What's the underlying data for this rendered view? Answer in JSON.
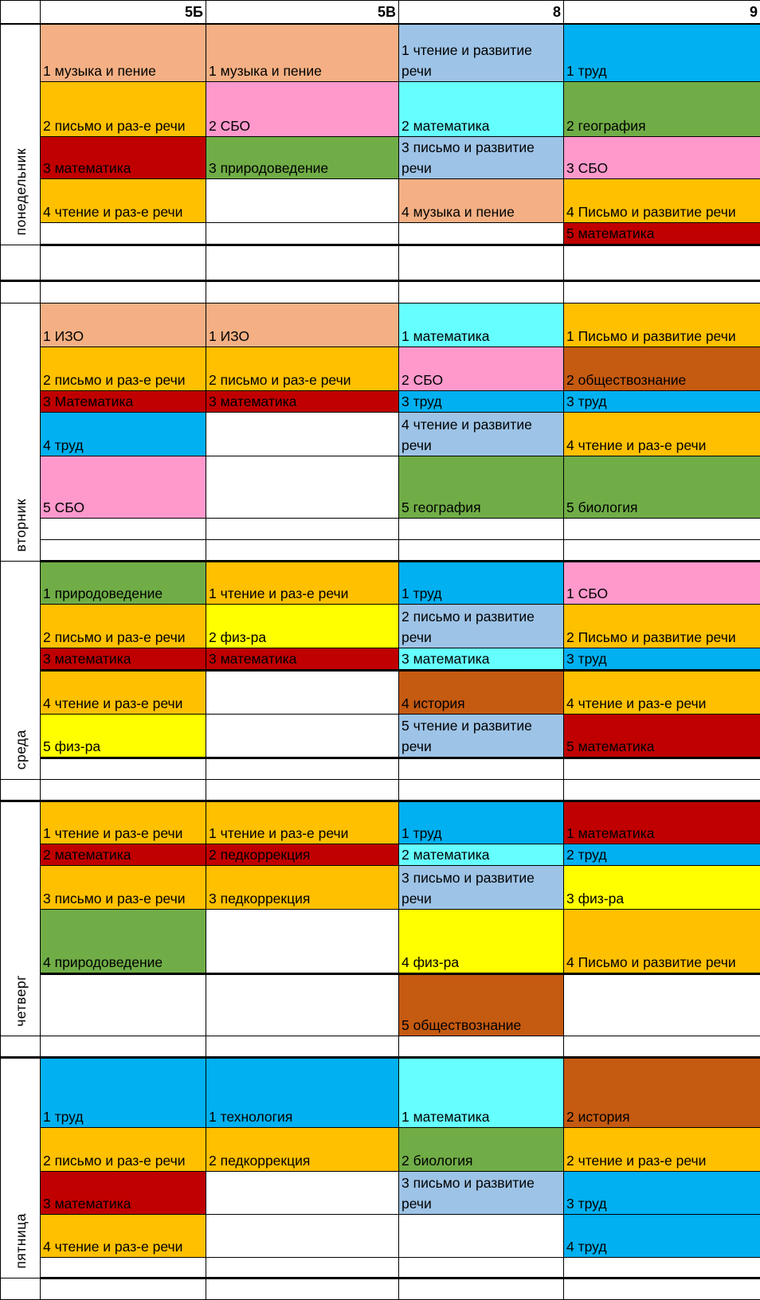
{
  "header": {
    "corner": "",
    "classes": [
      "5Б",
      "5В",
      "8",
      "9"
    ]
  },
  "colors": {
    "peach": "#F4B084",
    "orange": "#FFC000",
    "pink": "#FF99CC",
    "red": "#C00000",
    "green": "#70AD47",
    "lightblue": "#9DC3E6",
    "cyan": "#66FFFF",
    "blue": "#00B0F0",
    "brown": "#C55A11",
    "yellow": "#FFFF00",
    "white": "#FFFFFF"
  },
  "days": [
    {
      "label": "понедельник",
      "rows": [
        [
          {
            "text": "1 музыка и пение",
            "color": "peach"
          },
          {
            "text": "1 музыка и пение",
            "color": "peach"
          },
          {
            "text": "1 чтение и развитие речи",
            "color": "lightblue"
          },
          {
            "text": "1 труд",
            "color": "blue"
          }
        ],
        [
          {
            "text": "2 письмо и раз-е речи",
            "color": "orange"
          },
          {
            "text": "2 СБО",
            "color": "pink"
          },
          {
            "text": "2 математика",
            "color": "cyan"
          },
          {
            "text": "2 география",
            "color": "green"
          }
        ],
        [
          {
            "text": "3 математика",
            "color": "red"
          },
          {
            "text": "3 природоведение",
            "color": "green"
          },
          {
            "text": "3 письмо и развитие речи",
            "color": "lightblue"
          },
          {
            "text": "3 СБО",
            "color": "pink"
          }
        ],
        [
          {
            "text": "4 чтение и раз-е речи",
            "color": "orange"
          },
          {
            "text": "",
            "color": "white"
          },
          {
            "text": "4 музыка и пение",
            "color": "peach"
          },
          {
            "text": "4 Письмо и развитие речи",
            "color": "orange"
          }
        ],
        [
          {
            "text": "",
            "color": "white"
          },
          {
            "text": "",
            "color": "white"
          },
          {
            "text": "",
            "color": "white"
          },
          {
            "text": "5 математика",
            "color": "red"
          }
        ],
        [
          {
            "text": "",
            "color": "white"
          },
          {
            "text": "",
            "color": "white"
          },
          {
            "text": "",
            "color": "white"
          },
          {
            "text": "",
            "color": "white"
          }
        ],
        [
          {
            "text": "",
            "color": "white"
          },
          {
            "text": "",
            "color": "white"
          },
          {
            "text": "",
            "color": "white"
          },
          {
            "text": "",
            "color": "white"
          }
        ]
      ]
    },
    {
      "label": "вторник",
      "rows": [
        [
          {
            "text": "1 ИЗО",
            "color": "peach"
          },
          {
            "text": "1 ИЗО",
            "color": "peach"
          },
          {
            "text": "1 математика",
            "color": "cyan"
          },
          {
            "text": "1 Письмо и развитие речи",
            "color": "orange"
          }
        ],
        [
          {
            "text": "2 письмо и раз-е речи",
            "color": "orange"
          },
          {
            "text": "2 письмо и раз-е речи",
            "color": "orange"
          },
          {
            "text": "2 СБО",
            "color": "pink"
          },
          {
            "text": "2 обществознание",
            "color": "brown"
          }
        ],
        [
          {
            "text": "3 Математика",
            "color": "red"
          },
          {
            "text": "3 математика",
            "color": "red"
          },
          {
            "text": "3 труд",
            "color": "blue"
          },
          {
            "text": "3 труд",
            "color": "blue"
          }
        ],
        [
          {
            "text": "4 труд",
            "color": "blue"
          },
          {
            "text": "",
            "color": "white"
          },
          {
            "text": "4 чтение и развитие речи",
            "color": "lightblue"
          },
          {
            "text": "4 чтение и раз-е речи",
            "color": "orange"
          }
        ],
        [
          {
            "text": "5 СБО",
            "color": "pink"
          },
          {
            "text": "",
            "color": "white"
          },
          {
            "text": "5 география",
            "color": "green"
          },
          {
            "text": "5 биология",
            "color": "green"
          }
        ],
        [
          {
            "text": "",
            "color": "white"
          },
          {
            "text": "",
            "color": "white"
          },
          {
            "text": "",
            "color": "white"
          },
          {
            "text": "",
            "color": "white"
          }
        ],
        [
          {
            "text": "",
            "color": "white"
          },
          {
            "text": "",
            "color": "white"
          },
          {
            "text": "",
            "color": "white"
          },
          {
            "text": "",
            "color": "white"
          }
        ]
      ]
    },
    {
      "label": "среда",
      "rows": [
        [
          {
            "text": "1 природоведение",
            "color": "green"
          },
          {
            "text": "1 чтение и раз-е речи",
            "color": "orange"
          },
          {
            "text": "1 труд",
            "color": "blue"
          },
          {
            "text": "1 СБО",
            "color": "pink"
          }
        ],
        [
          {
            "text": "2 письмо и раз-е речи",
            "color": "orange"
          },
          {
            "text": "2 физ-ра",
            "color": "yellow"
          },
          {
            "text": "2 письмо и развитие речи",
            "color": "lightblue"
          },
          {
            "text": "2 Письмо и развитие речи",
            "color": "orange"
          }
        ],
        [
          {
            "text": "3 математика",
            "color": "red"
          },
          {
            "text": "3 математика",
            "color": "red"
          },
          {
            "text": "3 математика",
            "color": "cyan"
          },
          {
            "text": "3 труд",
            "color": "blue"
          }
        ],
        [
          {
            "text": "4 чтение и раз-е речи",
            "color": "orange"
          },
          {
            "text": "",
            "color": "white"
          },
          {
            "text": "4 история",
            "color": "brown"
          },
          {
            "text": "4 чтение и раз-е речи",
            "color": "orange"
          }
        ],
        [
          {
            "text": "5 физ-ра",
            "color": "yellow"
          },
          {
            "text": "",
            "color": "white"
          },
          {
            "text": "5 чтение и развитие речи",
            "color": "lightblue"
          },
          {
            "text": "5 математика",
            "color": "red"
          }
        ],
        [
          {
            "text": "",
            "color": "white"
          },
          {
            "text": "",
            "color": "white"
          },
          {
            "text": "",
            "color": "white"
          },
          {
            "text": "",
            "color": "white"
          }
        ],
        [
          {
            "text": "",
            "color": "white"
          },
          {
            "text": "",
            "color": "white"
          },
          {
            "text": "",
            "color": "white"
          },
          {
            "text": "",
            "color": "white"
          }
        ]
      ]
    },
    {
      "label": "четверг",
      "rows": [
        [
          {
            "text": "1 чтение и раз-е речи",
            "color": "orange"
          },
          {
            "text": "1 чтение и раз-е речи",
            "color": "orange"
          },
          {
            "text": "1 труд",
            "color": "blue"
          },
          {
            "text": "1 математика",
            "color": "red"
          }
        ],
        [
          {
            "text": "2 математика",
            "color": "red"
          },
          {
            "text": "2 педкоррекция",
            "color": "red"
          },
          {
            "text": "2 математика",
            "color": "cyan"
          },
          {
            "text": "2 труд",
            "color": "blue"
          }
        ],
        [
          {
            "text": "3 письмо и раз-е речи",
            "color": "orange"
          },
          {
            "text": "3 педкоррекция",
            "color": "orange"
          },
          {
            "text": "3 письмо и развитие речи",
            "color": "lightblue"
          },
          {
            "text": "3 физ-ра",
            "color": "yellow"
          }
        ],
        [
          {
            "text": "4 природоведение",
            "color": "green"
          },
          {
            "text": "",
            "color": "white"
          },
          {
            "text": "4 физ-ра",
            "color": "yellow"
          },
          {
            "text": "4 Письмо и развитие речи",
            "color": "orange"
          }
        ],
        [
          {
            "text": "",
            "color": "white"
          },
          {
            "text": "",
            "color": "white"
          },
          {
            "text": "5 обществознание",
            "color": "brown"
          },
          {
            "text": "",
            "color": "white"
          }
        ],
        [
          {
            "text": "",
            "color": "white"
          },
          {
            "text": "",
            "color": "white"
          },
          {
            "text": "",
            "color": "white"
          },
          {
            "text": "",
            "color": "white"
          }
        ]
      ]
    },
    {
      "label": "пятница",
      "rows": [
        [
          {
            "text": "1 труд",
            "color": "blue"
          },
          {
            "text": "1 технология",
            "color": "blue"
          },
          {
            "text": "1 математика",
            "color": "cyan"
          },
          {
            "text": "2 история",
            "color": "brown"
          }
        ],
        [
          {
            "text": "2 письмо и раз-е речи",
            "color": "orange"
          },
          {
            "text": "2 педкоррекция",
            "color": "orange"
          },
          {
            "text": "2 биология",
            "color": "green"
          },
          {
            "text": "2 чтение и раз-е речи",
            "color": "orange"
          }
        ],
        [
          {
            "text": "3 математика",
            "color": "red"
          },
          {
            "text": "",
            "color": "white"
          },
          {
            "text": "3 письмо и развитие речи",
            "color": "lightblue"
          },
          {
            "text": "3 труд",
            "color": "blue"
          }
        ],
        [
          {
            "text": "4 чтение и раз-е речи",
            "color": "orange"
          },
          {
            "text": "",
            "color": "white"
          },
          {
            "text": "",
            "color": "white"
          },
          {
            "text": "4 труд",
            "color": "blue"
          }
        ],
        [
          {
            "text": "",
            "color": "white"
          },
          {
            "text": "",
            "color": "white"
          },
          {
            "text": "",
            "color": "white"
          },
          {
            "text": "",
            "color": "white"
          }
        ],
        [
          {
            "text": "",
            "color": "white"
          },
          {
            "text": "",
            "color": "white"
          },
          {
            "text": "",
            "color": "white"
          },
          {
            "text": "",
            "color": "white"
          }
        ]
      ]
    }
  ]
}
